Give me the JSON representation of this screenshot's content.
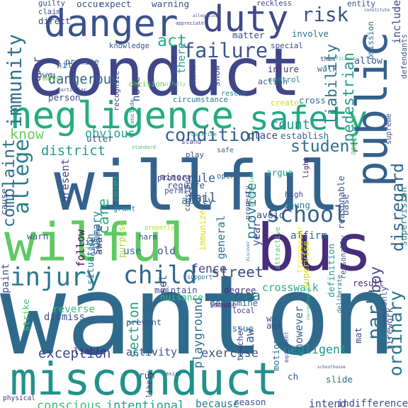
{
  "words": [
    {
      "text": "wanton",
      "color": "#2f6a8d"
    },
    {
      "text": "conduct",
      "color": "#3f4788"
    },
    {
      "text": "willful",
      "color": "#33638d"
    },
    {
      "text": "wilful",
      "color": "#5ec962"
    },
    {
      "text": "misconduct",
      "color": "#21918c"
    },
    {
      "text": "bus",
      "color": "#472d7b"
    },
    {
      "text": "negligence",
      "color": "#25ac82"
    },
    {
      "text": "danger",
      "color": "#3b528b"
    },
    {
      "text": "duty",
      "color": "#3e4a89"
    },
    {
      "text": "safety",
      "color": "#22a884"
    },
    {
      "text": "public",
      "color": "#35608d"
    },
    {
      "text": "risk",
      "color": "#3b518b"
    },
    {
      "text": "school",
      "color": "#34618d"
    },
    {
      "text": "injury",
      "color": "#2a788e"
    },
    {
      "text": "child",
      "color": "#31688e"
    },
    {
      "text": "failure",
      "color": "#39558c"
    },
    {
      "text": "immunity",
      "color": "#2c728e"
    },
    {
      "text": "dangerous",
      "color": "#33638d"
    },
    {
      "text": "know",
      "color": "#6ccd5a"
    },
    {
      "text": "condition",
      "color": "#355f8d"
    },
    {
      "text": "act",
      "color": "#28ae80"
    },
    {
      "text": "allege",
      "color": "#277f8e"
    },
    {
      "text": "complaint",
      "color": "#2d708e"
    },
    {
      "text": "care",
      "color": "#2db27d"
    },
    {
      "text": "ordinary",
      "color": "#2a768e"
    },
    {
      "text": "park",
      "color": "#2c718e"
    },
    {
      "text": "disregard",
      "color": "#33638d"
    },
    {
      "text": "student",
      "color": "#2d718e"
    },
    {
      "text": "street",
      "color": "#3d4d8a"
    },
    {
      "text": "pedestrian",
      "color": "#1f9a8a"
    },
    {
      "text": "liability",
      "color": "#2c738e"
    },
    {
      "text": "exercise",
      "color": "#3a548c"
    },
    {
      "text": "negligent",
      "color": "#1f968b"
    },
    {
      "text": "exception",
      "color": "#3f4889"
    },
    {
      "text": "playground",
      "color": "#2e6e8e"
    },
    {
      "text": "fail",
      "color": "#3d4e8a"
    },
    {
      "text": "district",
      "color": "#1e9c89"
    },
    {
      "text": "provide",
      "color": "#297b8e"
    },
    {
      "text": "count",
      "color": "#20938c"
    },
    {
      "text": "rule",
      "color": "#355f8d"
    },
    {
      "text": "section",
      "color": "#1fa088"
    },
    {
      "text": "fence",
      "color": "#3d4e8a"
    },
    {
      "text": "area",
      "color": "#2a788e"
    },
    {
      "text": "activity",
      "color": "#3a538b"
    },
    {
      "text": "intend",
      "color": "#3e4989"
    },
    {
      "text": "boy",
      "color": "#3e4c8a"
    },
    {
      "text": "crosswalk",
      "color": "#28ae80"
    },
    {
      "text": "conscious",
      "color": "#3fbc73"
    },
    {
      "text": "intentional",
      "color": "#1fa188"
    },
    {
      "text": "indifference",
      "color": "#3d4e8a"
    },
    {
      "text": "supervision",
      "color": "#25848e"
    },
    {
      "text": "involve",
      "color": "#2e6f8e"
    },
    {
      "text": "reckless",
      "color": "#3f4788"
    },
    {
      "text": "entity",
      "color": "#3b528b"
    },
    {
      "text": "because",
      "color": "#287d8e"
    },
    {
      "text": "apply",
      "color": "#2c718e"
    },
    {
      "text": "permit",
      "color": "#39568c"
    },
    {
      "text": "harm",
      "color": "#3e4989"
    },
    {
      "text": "open",
      "color": "#2e6f8e"
    },
    {
      "text": "use",
      "color": "#2a768e"
    },
    {
      "text": "old",
      "color": "#3b528b"
    },
    {
      "text": "obvious",
      "color": "#1fa188"
    },
    {
      "text": "injure",
      "color": "#472c7a"
    },
    {
      "text": "action",
      "color": "#365d8d"
    },
    {
      "text": "high",
      "color": "#433e85"
    },
    {
      "text": "young",
      "color": "#2a778e"
    },
    {
      "text": "place",
      "color": "#3f4889"
    },
    {
      "text": "establish",
      "color": "#2c718e"
    },
    {
      "text": "circumstance",
      "color": "#2a788e"
    },
    {
      "text": "knowledge",
      "color": "#39568c"
    },
    {
      "text": "special",
      "color": "#404588"
    },
    {
      "text": "walk",
      "color": "#31688e"
    },
    {
      "text": "allow",
      "color": "#3a548c"
    },
    {
      "text": "thus",
      "color": "#463480"
    },
    {
      "text": "control",
      "color": "#23898e"
    },
    {
      "text": "rescue",
      "color": "#26828e"
    },
    {
      "text": "stand",
      "color": "#404588"
    },
    {
      "text": "warn",
      "color": "#3b528b"
    },
    {
      "text": "present",
      "color": "#3f4889"
    },
    {
      "text": "summary",
      "color": "#2a768e"
    },
    {
      "text": "degree",
      "color": "#46307e"
    },
    {
      "text": "determine",
      "color": "#2f6b8e"
    },
    {
      "text": "maintain",
      "color": "#3b528b"
    },
    {
      "text": "nuisance",
      "color": "#35b779"
    },
    {
      "text": "result",
      "color": "#482576"
    },
    {
      "text": "affirm",
      "color": "#31668e"
    },
    {
      "text": "avoid",
      "color": "#3e4c8a"
    },
    {
      "text": "argue",
      "color": "#1f9e89"
    },
    {
      "text": "safe",
      "color": "#31688e"
    },
    {
      "text": "light",
      "color": "#471365"
    },
    {
      "text": "create",
      "color": "#c2df23"
    },
    {
      "text": "cross",
      "color": "#2d718e"
    },
    {
      "text": "protect",
      "color": "#453781"
    },
    {
      "text": "require",
      "color": "#3b528b"
    },
    {
      "text": "minor",
      "color": "#3f4788"
    },
    {
      "text": "play",
      "color": "#3d4d8a"
    },
    {
      "text": "issue",
      "color": "#2e6e8e"
    },
    {
      "text": "law",
      "color": "#38598c"
    },
    {
      "text": "way",
      "color": "#3b528b"
    },
    {
      "text": "age",
      "color": "#3e4c8a"
    },
    {
      "text": "local",
      "color": "#3e4a89"
    },
    {
      "text": "immune",
      "color": "#482576"
    },
    {
      "text": "reverse",
      "color": "#3fbc73"
    },
    {
      "text": "dismiss",
      "color": "#3b528b"
    },
    {
      "text": "liable",
      "color": "#482576"
    },
    {
      "text": "prevent",
      "color": "#3b528b"
    },
    {
      "text": "exist",
      "color": "#443a83"
    },
    {
      "text": "run",
      "color": "#3b528b"
    },
    {
      "text": "likely",
      "color": "#472d7b"
    },
    {
      "text": "slide",
      "color": "#2e6e8e"
    },
    {
      "text": "motion",
      "color": "#2c718e"
    },
    {
      "text": "however",
      "color": "#33638d"
    },
    {
      "text": "equipment",
      "color": "#3e4989"
    },
    {
      "text": "physical",
      "color": "#46337f"
    },
    {
      "text": "reason",
      "color": "#3b528b"
    },
    {
      "text": "supervise",
      "color": "#c8e020"
    },
    {
      "text": "definition",
      "color": "#1f9e89"
    },
    {
      "text": "deliberate",
      "color": "#2a788e"
    },
    {
      "text": "wantonly",
      "color": "#3b528b"
    },
    {
      "text": "reasonably",
      "color": "#3b528b"
    },
    {
      "text": "reasonable",
      "color": "#38598c"
    },
    {
      "text": "trespasser",
      "color": "#fde725"
    },
    {
      "text": "property",
      "color": "#3e4989"
    },
    {
      "text": "general",
      "color": "#2c738e"
    },
    {
      "text": "aware",
      "color": "#3f4788"
    },
    {
      "text": "situation",
      "color": "#25848e"
    },
    {
      "text": "follow",
      "color": "#440154"
    },
    {
      "text": "grant",
      "color": "#21918c"
    },
    {
      "text": "purpose",
      "color": "#a0da39"
    },
    {
      "text": "properly",
      "color": "#b5de2b"
    },
    {
      "text": "immunize",
      "color": "#d8e219"
    },
    {
      "text": "year",
      "color": "#3e4a89"
    },
    {
      "text": "discover",
      "color": "#25858e"
    },
    {
      "text": "city",
      "color": "#2c728e"
    },
    {
      "text": "cite",
      "color": "#3b528b"
    },
    {
      "text": "content",
      "color": "#35b779"
    },
    {
      "text": "recreational",
      "color": "#35b779"
    },
    {
      "text": "attractive",
      "color": "#5ec962"
    },
    {
      "text": "base",
      "color": "#3b528b"
    },
    {
      "text": "utter",
      "color": "#3e4a89"
    },
    {
      "text": "standard",
      "color": "#44bf70"
    },
    {
      "text": "doctrine",
      "color": "#1f968b"
    },
    {
      "text": "consider",
      "color": "#3e4a89"
    },
    {
      "text": "conclude",
      "color": "#2a768e"
    },
    {
      "text": "decision",
      "color": "#6ccd5a"
    },
    {
      "text": "person",
      "color": "#3e4a89"
    },
    {
      "text": "user",
      "color": "#3f4889"
    },
    {
      "text": "owe",
      "color": "#3e4a89"
    },
    {
      "text": "move",
      "color": "#73d056"
    },
    {
      "text": "hit",
      "color": "#2d718e"
    },
    {
      "text": "particular",
      "color": "#3b528b"
    },
    {
      "text": "recognize",
      "color": "#433e85"
    },
    {
      "text": "note",
      "color": "#3e4a89"
    },
    {
      "text": "there",
      "color": "#1fa188"
    },
    {
      "text": "wilfully",
      "color": "#5ec962"
    },
    {
      "text": "evidence",
      "color": "#3f4788"
    },
    {
      "text": "show",
      "color": "#3e4a89"
    },
    {
      "text": "matter",
      "color": "#3e4c8a"
    },
    {
      "text": "allegation",
      "color": "#3b528b"
    },
    {
      "text": "appreciate",
      "color": "#3e4989"
    },
    {
      "text": "warning",
      "color": "#3b528b"
    },
    {
      "text": "expect",
      "color": "#3e4c8a"
    },
    {
      "text": "occur",
      "color": "#3b528b"
    },
    {
      "text": "guilty",
      "color": "#3e4a89"
    },
    {
      "text": "claim",
      "color": "#3b528b"
    },
    {
      "text": "direct",
      "color": "#3e4a89"
    },
    {
      "text": "premise",
      "color": "#3b528b"
    },
    {
      "text": "constitute",
      "color": "#3b528b"
    },
    {
      "text": "omission",
      "color": "#2c728e"
    },
    {
      "text": "include",
      "color": "#3e4989"
    },
    {
      "text": "defendants",
      "color": "#38598c"
    },
    {
      "text": "sufficient",
      "color": "#35b779"
    },
    {
      "text": "appellate",
      "color": "#5ec962"
    },
    {
      "text": "supreme",
      "color": "#3b528b"
    },
    {
      "text": "cause",
      "color": "#3e4a89"
    },
    {
      "text": "paint",
      "color": "#3b528b"
    },
    {
      "text": "strike",
      "color": "#4ac16d"
    },
    {
      "text": "set",
      "color": "#3e4989"
    },
    {
      "text": "support",
      "color": "#2c728e"
    },
    {
      "text": "teacher",
      "color": "#3e4a89"
    },
    {
      "text": "protection",
      "color": "#3fbc73"
    },
    {
      "text": "firework",
      "color": "#3b528b"
    },
    {
      "text": "mat",
      "color": "#3e4a89"
    },
    {
      "text": "ch",
      "color": "#3b528b"
    },
    {
      "text": "schoolhouse",
      "color": "#3b528b"
    }
  ]
}
